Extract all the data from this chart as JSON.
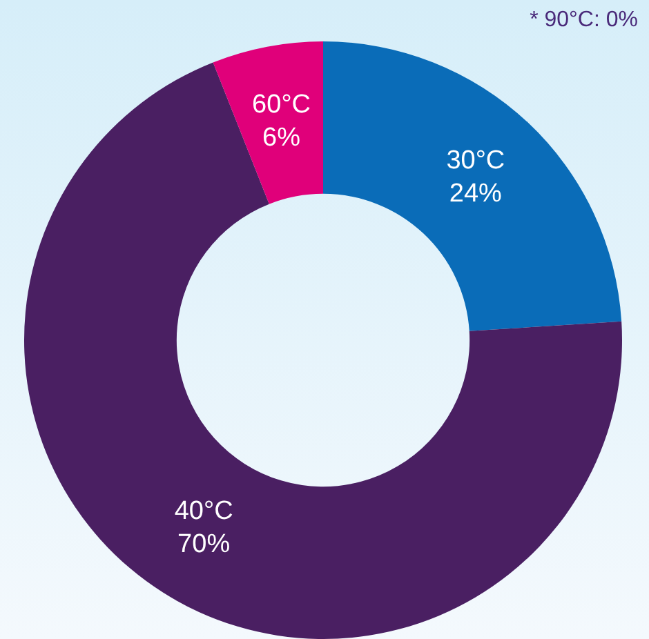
{
  "chart_data": {
    "type": "donut",
    "categories": [
      "30°C",
      "40°C",
      "60°C"
    ],
    "values": [
      24,
      70,
      6
    ],
    "colors": [
      "#0a6cb8",
      "#4a1f62",
      "#e0007a"
    ],
    "value_labels": [
      "24%",
      "70%",
      "6%"
    ],
    "annotations": [
      "* 90°C: 0%"
    ]
  }
}
